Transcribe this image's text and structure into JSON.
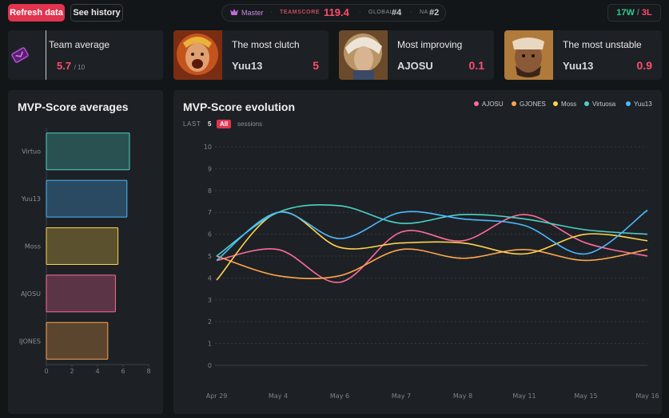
{
  "toolbar": {
    "refresh_label": "Refresh data",
    "history_label": "See history"
  },
  "rank": {
    "tier": "Master",
    "teamscore_label": "TEAMSCORE",
    "teamscore": "119.4",
    "global_label": "GLOBAL",
    "global_rank": "#4",
    "region_label": "NA",
    "region_rank": "#2"
  },
  "record": {
    "wins": "17W",
    "sep": "/",
    "losses": "3L"
  },
  "cards": [
    {
      "title": "Team average",
      "value": "5.7",
      "max": "/ 10"
    },
    {
      "title": "The most clutch",
      "name": "Yuu13",
      "value": "5"
    },
    {
      "title": "Most improving",
      "name": "AJOSU",
      "value": "0.1"
    },
    {
      "title": "The most unstable",
      "name": "Yuu13",
      "value": "0.9"
    }
  ],
  "colors": {
    "accent": "#e0344f",
    "AJOSU": "#ff6b9a",
    "GJONES": "#ffa64d",
    "Moss": "#ffd24d",
    "Virtuosa": "#4fd1c5",
    "Yuu13": "#4db8ff"
  },
  "averages_panel": {
    "title": "MVP-Score averages"
  },
  "evolution_panel": {
    "title": "MVP-Score evolution",
    "sessions_prefix": "LAST",
    "option_5": "5",
    "option_all": "All",
    "sessions_suffix": "sessions"
  },
  "chart_data": [
    {
      "type": "bar",
      "orientation": "horizontal",
      "title": "MVP-Score averages",
      "categories": [
        "Virtuo",
        "Yuu13",
        "Moss",
        "AJOSU",
        "IJONES"
      ],
      "values": [
        6.5,
        6.3,
        5.6,
        5.4,
        4.8
      ],
      "colors": [
        "#4fd1c5",
        "#4db8ff",
        "#ffd24d",
        "#ff6b9a",
        "#ffa64d"
      ],
      "xlim": [
        0,
        8
      ],
      "xticks": [
        "0",
        "2",
        "4",
        "6",
        "8"
      ],
      "grid": false
    },
    {
      "type": "line",
      "title": "MVP-Score evolution",
      "x": [
        "Apr 29",
        "May 4",
        "May 6",
        "May 7",
        "May 8",
        "May 11",
        "May 15",
        "May 16"
      ],
      "ylim": [
        0,
        10
      ],
      "yticks": [
        "0",
        "1",
        "2",
        "3",
        "4",
        "5",
        "6",
        "7",
        "8",
        "9",
        "10"
      ],
      "grid": true,
      "legend": "top-right",
      "series": [
        {
          "name": "AJOSU",
          "color": "#ff6b9a",
          "values": [
            4.8,
            5.3,
            3.8,
            6.1,
            5.7,
            6.9,
            5.6,
            5.0
          ]
        },
        {
          "name": "GJONES",
          "color": "#ffa64d",
          "values": [
            5.0,
            4.1,
            4.1,
            5.3,
            4.9,
            5.3,
            4.8,
            5.3
          ]
        },
        {
          "name": "Moss",
          "color": "#ffd24d",
          "values": [
            3.9,
            7.0,
            5.4,
            5.6,
            5.6,
            5.1,
            6.0,
            5.7
          ]
        },
        {
          "name": "Virtuosa",
          "color": "#4fd1c5",
          "values": [
            5.0,
            7.0,
            7.3,
            6.5,
            6.9,
            6.7,
            6.2,
            6.0
          ]
        },
        {
          "name": "Yuu13",
          "color": "#4db8ff",
          "values": [
            4.8,
            7.0,
            5.8,
            7.0,
            6.7,
            6.4,
            5.1,
            7.1
          ]
        }
      ]
    }
  ]
}
